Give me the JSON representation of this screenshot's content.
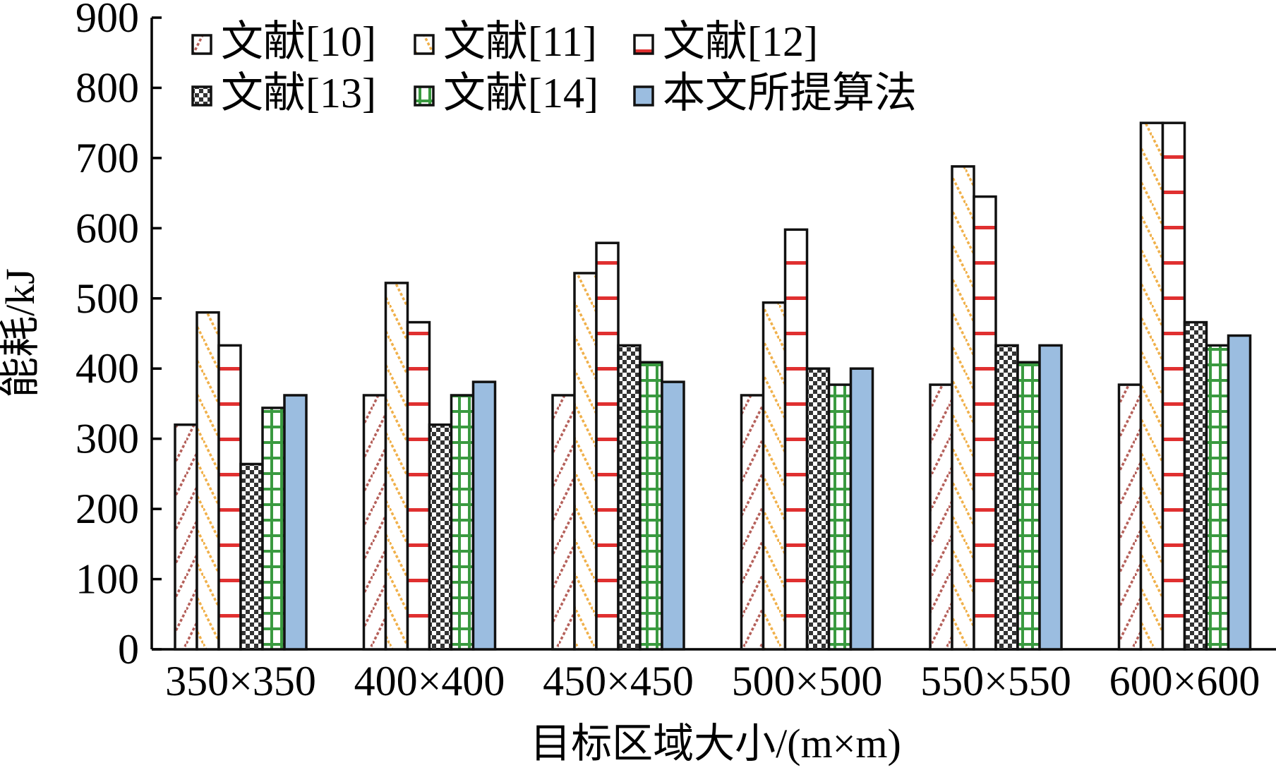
{
  "chart_data": {
    "type": "bar",
    "xlabel": "目标区域大小/(m×m)",
    "ylabel": "能耗/kJ",
    "ylim": [
      0,
      900
    ],
    "yticks": [
      "0",
      "100",
      "200",
      "300",
      "400",
      "500",
      "600",
      "700",
      "800",
      "900"
    ],
    "categories": [
      "350×350",
      "400×400",
      "450×450",
      "500×500",
      "550×550",
      "600×600"
    ],
    "legend_position": "top-left",
    "series": [
      {
        "name": "文献[10]",
        "pattern": "diag-up",
        "color": "#b5605a",
        "values": [
          320,
          362,
          362,
          362,
          377,
          377
        ]
      },
      {
        "name": "文献[11]",
        "pattern": "diag-down",
        "color": "#f0b04a",
        "values": [
          480,
          522,
          536,
          494,
          688,
          750
        ]
      },
      {
        "name": "文献[12]",
        "pattern": "hlines",
        "color": "#e03030",
        "values": [
          433,
          466,
          579,
          598,
          645,
          750
        ]
      },
      {
        "name": "文献[13]",
        "pattern": "checker",
        "color": "#333333",
        "values": [
          264,
          320,
          433,
          400,
          433,
          466
        ]
      },
      {
        "name": "文献[14]",
        "pattern": "grid",
        "color": "#3a9a40",
        "values": [
          344,
          362,
          409,
          377,
          409,
          433
        ]
      },
      {
        "name": "本文所提算法",
        "pattern": "solid",
        "color": "#9bbde0",
        "values": [
          362,
          381,
          381,
          400,
          433,
          447
        ]
      }
    ]
  }
}
